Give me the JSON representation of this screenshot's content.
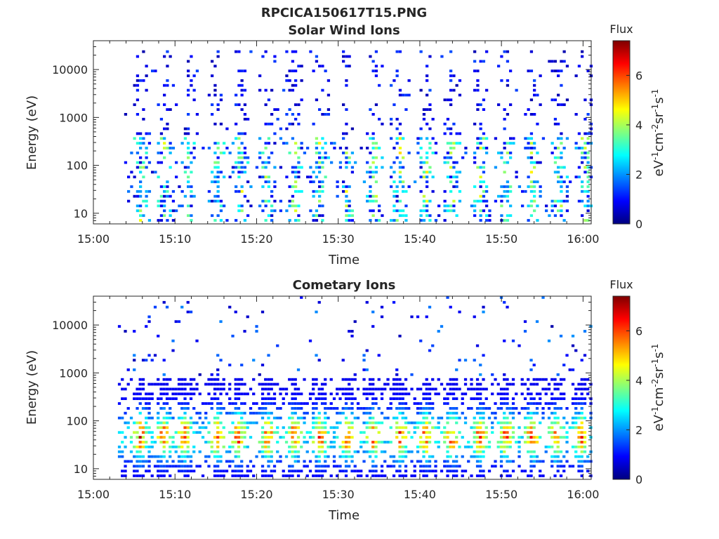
{
  "figure": {
    "title": "RPCICA150617T15.PNG"
  },
  "colors": {
    "axis": "#262626",
    "colormap": "jet"
  },
  "chart_data": [
    {
      "type": "heatmap",
      "title": "Solar Wind Ions",
      "xlabel": "Time",
      "ylabel": "Energy (eV)",
      "y_scale": "log",
      "xlim": [
        "15:00",
        "16:01"
      ],
      "ylim": [
        6,
        40000
      ],
      "x_ticks": [
        "15:00",
        "15:10",
        "15:20",
        "15:30",
        "15:40",
        "15:50",
        "16:00"
      ],
      "y_ticks": [
        "10",
        "100",
        "1000",
        "10000"
      ],
      "colorbar": {
        "title": "Flux",
        "label": "eV^-1 cm^-2 sr^-1 s^-1",
        "range": [
          0,
          7.4
        ],
        "ticks": [
          "0",
          "2",
          "4",
          "6"
        ]
      },
      "start_minute": 3.4,
      "burst_centres_min": [
        5.6,
        8.5,
        11.6,
        15.0,
        17.9,
        21.2,
        24.4,
        27.6,
        30.9,
        34.2,
        37.4,
        40.6,
        43.8,
        47.2,
        50.4,
        53.6,
        56.9,
        60.0
      ],
      "profile": {
        "high_energy_occupancy": 0.3,
        "low_energy_flux": [
          0.5,
          3.5
        ],
        "high_energy_flux": [
          0.3,
          1.5
        ]
      }
    },
    {
      "type": "heatmap",
      "title": "Cometary Ions",
      "xlabel": "Time",
      "ylabel": "Energy (eV)",
      "y_scale": "log",
      "xlim": [
        "15:00",
        "16:01"
      ],
      "ylim": [
        6,
        40000
      ],
      "x_ticks": [
        "15:00",
        "15:10",
        "15:20",
        "15:30",
        "15:40",
        "15:50",
        "16:00"
      ],
      "y_ticks": [
        "10",
        "100",
        "1000",
        "10000"
      ],
      "colorbar": {
        "title": "Flux",
        "label": "eV^-1 cm^-2 sr^-1 s^-1",
        "range": [
          0,
          7.4
        ],
        "ticks": [
          "0",
          "2",
          "4",
          "6"
        ]
      },
      "start_minute": 3.0,
      "burst_centres_min": [
        5.6,
        8.5,
        11.0,
        15.0,
        17.6,
        21.2,
        24.4,
        27.6,
        30.9,
        34.2,
        37.4,
        40.6,
        43.8,
        47.2,
        50.4,
        53.6,
        56.5,
        59.6
      ],
      "profile": {
        "peak_energy_ev": 45,
        "peak_flux": 7.2,
        "high_energy_occupancy": 0.04,
        "high_energy_flux": [
          0.3,
          2.0
        ]
      }
    }
  ]
}
